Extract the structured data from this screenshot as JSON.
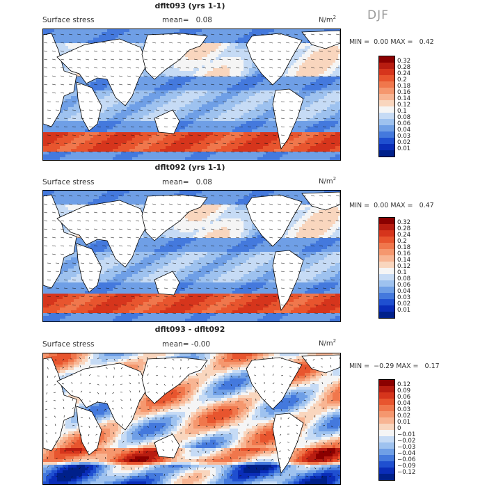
{
  "season": "DJF",
  "panels": [
    {
      "id": "p1",
      "title": "dflt093 (yrs 1-1)",
      "field": "Surface stress",
      "mean": "mean=   0.08",
      "unit": "N/m",
      "unit_sup": "2",
      "min_label": "MIN =",
      "min_value": "0.00",
      "max_label": "MAX =",
      "max_value": "0.42",
      "colorbar": {
        "labels": [
          "0.32",
          "0.28",
          "0.24",
          "0.2",
          "0.18",
          "0.16",
          "0.14",
          "0.12",
          "0.1",
          "0.08",
          "0.06",
          "0.04",
          "0.03",
          "0.02",
          "0.01"
        ],
        "colors": [
          "#8b0000",
          "#b81c10",
          "#d6351c",
          "#e8552e",
          "#f0774c",
          "#f5976e",
          "#f8b593",
          "#f9d6be",
          "#f5f5f5",
          "#c6dbf5",
          "#9ec2ef",
          "#6f9fe6",
          "#4479dd",
          "#1f4fd0",
          "#0a2db8",
          "#00208a"
        ]
      }
    },
    {
      "id": "p2",
      "title": "dflt092 (yrs 1-1)",
      "field": "Surface stress",
      "mean": "mean=   0.08",
      "unit": "N/m",
      "unit_sup": "2",
      "min_label": "MIN =",
      "min_value": "0.00",
      "max_label": "MAX =",
      "max_value": "0.47",
      "colorbar": {
        "labels": [
          "0.32",
          "0.28",
          "0.24",
          "0.2",
          "0.18",
          "0.16",
          "0.14",
          "0.12",
          "0.1",
          "0.08",
          "0.06",
          "0.04",
          "0.03",
          "0.02",
          "0.01"
        ],
        "colors": [
          "#8b0000",
          "#b81c10",
          "#d6351c",
          "#e8552e",
          "#f0774c",
          "#f5976e",
          "#f8b593",
          "#f9d6be",
          "#f5f5f5",
          "#c6dbf5",
          "#9ec2ef",
          "#6f9fe6",
          "#4479dd",
          "#1f4fd0",
          "#0a2db8",
          "#00208a"
        ]
      }
    },
    {
      "id": "p3",
      "title": "dflt093 - dflt092",
      "field": "Surface stress",
      "mean": "mean= -0.00",
      "unit": "N/m",
      "unit_sup": "2",
      "min_label": "MIN =",
      "min_value": "−0.29",
      "max_label": "MAX =",
      "max_value": "0.17",
      "colorbar": {
        "labels": [
          "0.12",
          "0.09",
          "0.06",
          "0.04",
          "0.03",
          "0.02",
          "0.01",
          "0",
          "−0.01",
          "−0.02",
          "−0.03",
          "−0.04",
          "−0.06",
          "−0.09",
          "−0.12"
        ],
        "colors": [
          "#8b0000",
          "#b81c10",
          "#d6351c",
          "#e8552e",
          "#f0774c",
          "#f5976e",
          "#f8b593",
          "#f9d6be",
          "#f5f5f5",
          "#c6dbf5",
          "#9ec2ef",
          "#6f9fe6",
          "#4479dd",
          "#1f4fd0",
          "#0a2db8",
          "#00208a"
        ]
      }
    }
  ]
}
